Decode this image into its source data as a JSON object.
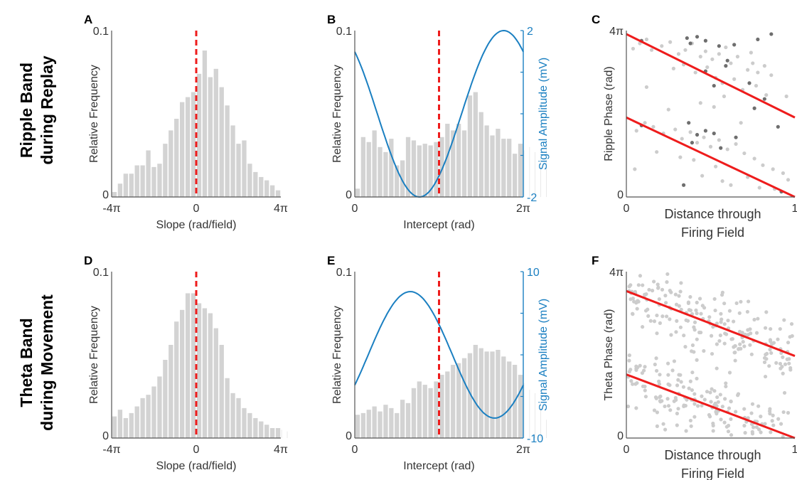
{
  "row_labels": [
    {
      "line1": "Ripple Band",
      "line2": "during Replay"
    },
    {
      "line1": "Theta Band",
      "line2": "during Movement"
    }
  ],
  "colors": {
    "bars": "#d3d3d3",
    "median_line": "#ee1c1c",
    "sine": "#1a7fc1",
    "fit_line": "#ee1c1c",
    "points_light": "#cccccc",
    "points_dark": "#6e6e6e",
    "axes": "#555555"
  },
  "chart_data": [
    {
      "panel": "A",
      "type": "bar",
      "xlabel": "Slope (rad/field)",
      "ylabel": "Relative Frequency",
      "xticks": [
        "-4π",
        "0",
        "4π"
      ],
      "yticks": [
        "0",
        "0.1"
      ],
      "xlim": [
        -12.566,
        12.566
      ],
      "ylim": [
        0,
        0.1
      ],
      "bin_width": 0.8378,
      "median_line_x": 0,
      "values": [
        0.003,
        0.008,
        0.014,
        0.014,
        0.019,
        0.019,
        0.028,
        0.018,
        0.02,
        0.032,
        0.04,
        0.047,
        0.057,
        0.06,
        0.063,
        0.074,
        0.088,
        0.072,
        0.077,
        0.066,
        0.055,
        0.043,
        0.032,
        0.034,
        0.02,
        0.015,
        0.012,
        0.01,
        0.007,
        0.004
      ]
    },
    {
      "panel": "B",
      "type": "bar",
      "xlabel": "Intercept (rad)",
      "ylabel": "Relative Frequency",
      "y2label": "Signal Amplitude (mV)",
      "xticks": [
        "0",
        "2π"
      ],
      "yticks": [
        "0",
        "0.1"
      ],
      "y2ticks": [
        "-2",
        "2"
      ],
      "xlim": [
        0,
        6.2832
      ],
      "ylim": [
        0,
        0.1
      ],
      "y2lim": [
        -2,
        2
      ],
      "bin_width": 0.2094,
      "median_line_x": 3.1416,
      "values": [
        0.005,
        0.036,
        0.033,
        0.04,
        0.03,
        0.027,
        0.035,
        0.019,
        0.022,
        0.036,
        0.034,
        0.031,
        0.032,
        0.031,
        0.033,
        0.036,
        0.044,
        0.04,
        0.044,
        0.04,
        0.061,
        0.063,
        0.051,
        0.043,
        0.037,
        0.041,
        0.035,
        0.035,
        0.026,
        0.032,
        0.028,
        0.03,
        0.027,
        0.024,
        0.032
      ],
      "sine": {
        "amplitude": 2,
        "phase_offset": 2.3,
        "samples": 121
      }
    },
    {
      "panel": "C",
      "type": "scatter",
      "xlabel": "Distance through Firing Field",
      "ylabel": "Ripple Phase (rad)",
      "xticks": [
        "0",
        "1"
      ],
      "yticks": [
        "0",
        "4π"
      ],
      "xlim": [
        0,
        1
      ],
      "ylim": [
        0,
        12.566
      ],
      "fit_lines": [
        {
          "x": [
            0,
            1
          ],
          "y": [
            12.3,
            6.0
          ]
        },
        {
          "x": [
            0,
            1
          ],
          "y": [
            6.0,
            -0.3
          ]
        }
      ],
      "series": [
        {
          "shade": "light",
          "points": [
            [
              0.04,
              11.2
            ],
            [
              0.08,
              11.6
            ],
            [
              0.12,
              11.9
            ],
            [
              0.15,
              11.1
            ],
            [
              0.21,
              11.4
            ],
            [
              0.26,
              11.7
            ],
            [
              0.31,
              10.8
            ],
            [
              0.35,
              11.1
            ],
            [
              0.39,
              11.6
            ],
            [
              0.44,
              10.6
            ],
            [
              0.47,
              11.0
            ],
            [
              0.51,
              10.4
            ],
            [
              0.55,
              10.8
            ],
            [
              0.59,
              11.3
            ],
            [
              0.62,
              10.1
            ],
            [
              0.66,
              10.6
            ],
            [
              0.72,
              9.6
            ],
            [
              0.75,
              10.1
            ],
            [
              0.78,
              9.4
            ],
            [
              0.82,
              9.9
            ],
            [
              0.86,
              9.2
            ],
            [
              0.28,
              9.7
            ],
            [
              0.34,
              10.0
            ],
            [
              0.41,
              9.4
            ],
            [
              0.48,
              9.8
            ],
            [
              0.53,
              9.0
            ],
            [
              0.57,
              8.6
            ],
            [
              0.64,
              8.9
            ],
            [
              0.69,
              8.1
            ],
            [
              0.77,
              8.4
            ],
            [
              0.83,
              7.7
            ],
            [
              0.95,
              7.6
            ],
            [
              0.44,
              7.1
            ],
            [
              0.52,
              6.8
            ],
            [
              0.58,
              7.6
            ],
            [
              0.06,
              5.0
            ],
            [
              0.11,
              5.6
            ],
            [
              0.16,
              5.3
            ],
            [
              0.22,
              4.8
            ],
            [
              0.29,
              5.1
            ],
            [
              0.33,
              4.4
            ],
            [
              0.38,
              4.9
            ],
            [
              0.42,
              4.1
            ],
            [
              0.46,
              4.5
            ],
            [
              0.5,
              3.8
            ],
            [
              0.55,
              4.3
            ],
            [
              0.6,
              3.6
            ],
            [
              0.65,
              4.0
            ],
            [
              0.7,
              3.3
            ],
            [
              0.76,
              2.9
            ],
            [
              0.81,
              2.4
            ],
            [
              0.87,
              2.1
            ],
            [
              0.93,
              1.8
            ],
            [
              0.32,
              3.0
            ],
            [
              0.4,
              2.8
            ],
            [
              0.53,
              2.3
            ],
            [
              0.57,
              1.2
            ],
            [
              0.62,
              0.9
            ],
            [
              0.72,
              1.5
            ],
            [
              0.79,
              0.7
            ],
            [
              0.88,
              0.6
            ],
            [
              0.96,
              1.3
            ],
            [
              0.05,
              2.1
            ],
            [
              0.12,
              8.3
            ],
            [
              0.18,
              3.4
            ],
            [
              0.25,
              6.6
            ],
            [
              0.45,
              1.6
            ],
            [
              0.68,
              5.6
            ],
            [
              0.74,
              10.9
            ]
          ]
        },
        {
          "shade": "dark",
          "points": [
            [
              0.09,
              11.8
            ],
            [
              0.36,
              12.0
            ],
            [
              0.38,
              11.6
            ],
            [
              0.42,
              12.1
            ],
            [
              0.47,
              11.8
            ],
            [
              0.55,
              11.4
            ],
            [
              0.6,
              10.3
            ],
            [
              0.64,
              11.5
            ],
            [
              0.78,
              11.9
            ],
            [
              0.86,
              12.3
            ],
            [
              0.47,
              9.5
            ],
            [
              0.52,
              8.4
            ],
            [
              0.59,
              9.9
            ],
            [
              0.73,
              8.6
            ],
            [
              0.76,
              6.7
            ],
            [
              0.82,
              7.4
            ],
            [
              0.9,
              5.3
            ],
            [
              0.09,
              5.4
            ],
            [
              0.37,
              5.6
            ],
            [
              0.42,
              4.7
            ],
            [
              0.47,
              5.0
            ],
            [
              0.52,
              4.8
            ],
            [
              0.56,
              3.7
            ],
            [
              0.65,
              4.5
            ],
            [
              0.34,
              0.9
            ],
            [
              0.92,
              0.4
            ],
            [
              0.39,
              4.1
            ]
          ]
        }
      ]
    },
    {
      "panel": "D",
      "type": "bar",
      "xlabel": "Slope (rad/field)",
      "ylabel": "Relative Frequency",
      "xticks": [
        "-4π",
        "0",
        "4π"
      ],
      "yticks": [
        "0",
        "0.1"
      ],
      "xlim": [
        -12.566,
        12.566
      ],
      "ylim": [
        0,
        0.1
      ],
      "bin_width": 0.8378,
      "median_line_x": 0,
      "values": [
        0.013,
        0.017,
        0.012,
        0.015,
        0.019,
        0.024,
        0.026,
        0.031,
        0.037,
        0.047,
        0.056,
        0.07,
        0.077,
        0.087,
        0.087,
        0.081,
        0.078,
        0.075,
        0.066,
        0.056,
        0.036,
        0.027,
        0.024,
        0.018,
        0.015,
        0.012,
        0.01,
        0.008,
        0.006,
        0.006,
        0.005,
        0.004
      ]
    },
    {
      "panel": "E",
      "type": "bar",
      "xlabel": "Intercept (rad)",
      "ylabel": "Relative Frequency",
      "y2label": "Signal Amplitude (mV)",
      "xticks": [
        "0",
        "2π"
      ],
      "yticks": [
        "0",
        "0.1"
      ],
      "y2ticks": [
        "-10",
        "10"
      ],
      "xlim": [
        0,
        6.2832
      ],
      "ylim": [
        0,
        0.1
      ],
      "y2lim": [
        -10,
        10
      ],
      "bin_width": 0.2094,
      "median_line_x": 3.1416,
      "values": [
        0.014,
        0.015,
        0.017,
        0.019,
        0.016,
        0.02,
        0.018,
        0.015,
        0.023,
        0.021,
        0.03,
        0.034,
        0.032,
        0.03,
        0.034,
        0.038,
        0.04,
        0.044,
        0.045,
        0.048,
        0.051,
        0.056,
        0.054,
        0.052,
        0.052,
        0.053,
        0.049,
        0.046,
        0.044,
        0.038,
        0.033,
        0.029,
        0.027,
        0.021,
        0.011
      ],
      "sine": {
        "amplitude": 7.6,
        "phase_offset": -0.5,
        "samples": 121
      }
    },
    {
      "panel": "F",
      "type": "scatter",
      "xlabel": "Distance through Firing Field",
      "ylabel": "Theta Phase (rad)",
      "xticks": [
        "0",
        "1"
      ],
      "yticks": [
        "0",
        "4π"
      ],
      "xlim": [
        0,
        1
      ],
      "ylim": [
        0,
        12.566
      ],
      "fit_lines": [
        {
          "x": [
            0,
            1
          ],
          "y": [
            11.1,
            6.2
          ]
        },
        {
          "x": [
            0,
            1
          ],
          "y": [
            4.8,
            -0.1
          ]
        }
      ],
      "series": [
        {
          "shade": "light",
          "cloud": true,
          "count_upper": 200,
          "count_lower": 190
        }
      ]
    }
  ]
}
